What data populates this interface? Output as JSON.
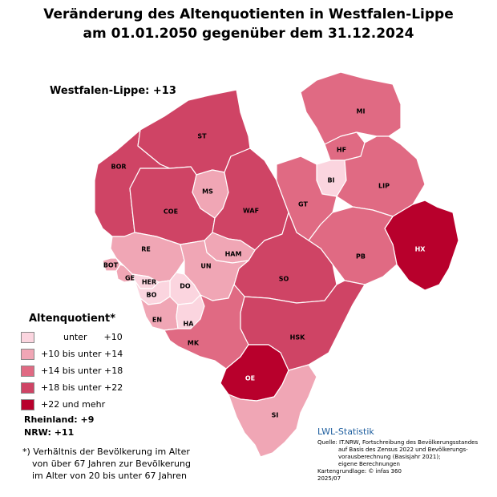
{
  "title_line1": "Veränderung des Altenquotienten in Westfalen-Lippe",
  "title_line2": "am 01.01.2050 gegenüber dem 31.12.2024",
  "summary": "Westfalen-Lippe: +13",
  "legend": {
    "title": "Altenquotient*",
    "items": [
      {
        "label": "        unter      +10",
        "color": "#fbd5df"
      },
      {
        "label": "+10 bis unter +14",
        "color": "#f0a6b5"
      },
      {
        "label": "+14 bis unter +18",
        "color": "#e06a83"
      },
      {
        "label": "+18 bis unter +22",
        "color": "#cf4465"
      },
      {
        "label": "+22 und mehr",
        "color": "#b8002c"
      }
    ]
  },
  "regions": {
    "rheinland": "Rheinland: +9",
    "nrw": "NRW: +11"
  },
  "footnote": [
    "*) Verhältnis der Bevölkerung im Alter",
    "von über 67 Jahren zur Bevölkerung",
    "im Alter von 20 bis unter 67 Jahren"
  ],
  "brand": "LWL-Statistik",
  "source": {
    "line1": "Quelle: IT.NRW, Fortschreibung des Bevölkerungsstandes",
    "line2": "auf Basis des Zensus 2022 und Bevölkerungs-",
    "line3": "vorausberechnung (Basisjahr 2021);",
    "line4": "eigene Berechnungen",
    "line5": "Kartengrundlage: © infas 360",
    "line6": "2025/07"
  },
  "districts": [
    {
      "id": "BOR",
      "cls": 4
    },
    {
      "id": "ST",
      "cls": 4
    },
    {
      "id": "COE",
      "cls": 4
    },
    {
      "id": "MS",
      "cls": 2
    },
    {
      "id": "WAF",
      "cls": 4
    },
    {
      "id": "MI",
      "cls": 3
    },
    {
      "id": "HF",
      "cls": 3
    },
    {
      "id": "BI",
      "cls": 1
    },
    {
      "id": "GT",
      "cls": 3
    },
    {
      "id": "LIP",
      "cls": 3
    },
    {
      "id": "HX",
      "cls": 5
    },
    {
      "id": "PB",
      "cls": 3
    },
    {
      "id": "SO",
      "cls": 4
    },
    {
      "id": "HSK",
      "cls": 4
    },
    {
      "id": "RE",
      "cls": 2
    },
    {
      "id": "HAM",
      "cls": 2
    },
    {
      "id": "UN",
      "cls": 2
    },
    {
      "id": "DO",
      "cls": 1
    },
    {
      "id": "BOT",
      "cls": 2
    },
    {
      "id": "GE",
      "cls": 2
    },
    {
      "id": "HER",
      "cls": 1
    },
    {
      "id": "BO",
      "cls": 1
    },
    {
      "id": "EN",
      "cls": 2
    },
    {
      "id": "HA",
      "cls": 1
    },
    {
      "id": "MK",
      "cls": 3
    },
    {
      "id": "OE",
      "cls": 5
    },
    {
      "id": "SI",
      "cls": 2
    }
  ]
}
